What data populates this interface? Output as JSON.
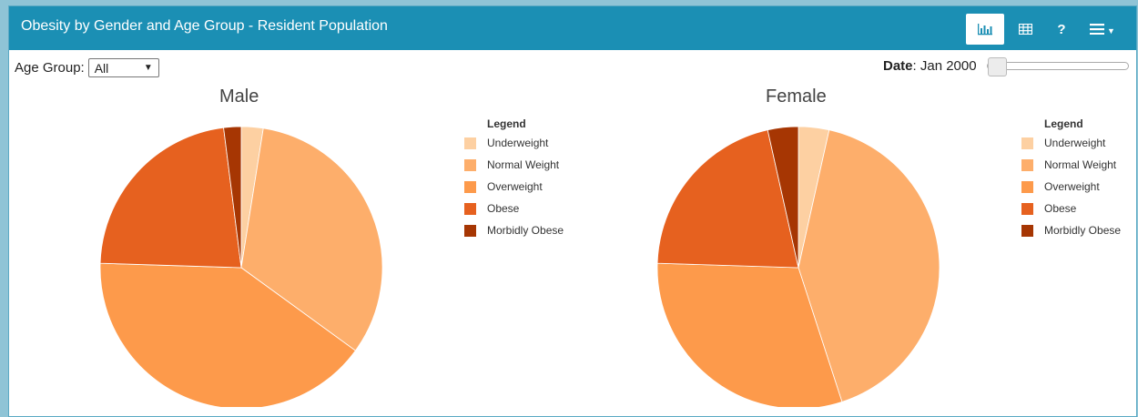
{
  "header": {
    "title": "Obesity by Gender and Age Group - Resident Population",
    "buttons": [
      {
        "name": "chart-view",
        "icon": "bar-chart-icon"
      },
      {
        "name": "table-view",
        "icon": "table-icon"
      },
      {
        "name": "help",
        "label": "?"
      },
      {
        "name": "menu",
        "icon": "hamburger-menu-icon"
      }
    ]
  },
  "filters": {
    "age_group_label": "Age Group:",
    "age_group_value": "All",
    "date_label": "Date",
    "date_value": ": Jan 2000"
  },
  "legend_title": "Legend",
  "colors": [
    "#fdd0a2",
    "#fdae6b",
    "#fd9a4b",
    "#e6611f",
    "#a63603"
  ],
  "chart_data": [
    {
      "type": "pie",
      "title": "Male",
      "categories": [
        "Underweight",
        "Normal Weight",
        "Overweight",
        "Obese",
        "Morbidly Obese"
      ],
      "values": [
        2.5,
        32.5,
        40.5,
        22.5,
        2.0
      ]
    },
    {
      "type": "pie",
      "title": "Female",
      "categories": [
        "Underweight",
        "Normal Weight",
        "Overweight",
        "Obese",
        "Morbidly Obese"
      ],
      "values": [
        3.5,
        41.5,
        30.5,
        21.0,
        3.5
      ]
    }
  ]
}
